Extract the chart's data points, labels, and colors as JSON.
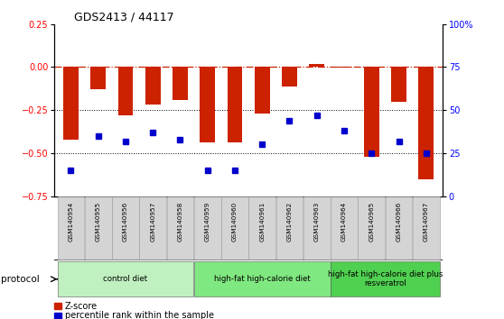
{
  "title": "GDS2413 / 44117",
  "samples": [
    "GSM140954",
    "GSM140955",
    "GSM140956",
    "GSM140957",
    "GSM140958",
    "GSM140959",
    "GSM140960",
    "GSM140961",
    "GSM140962",
    "GSM140963",
    "GSM140964",
    "GSM140965",
    "GSM140966",
    "GSM140967"
  ],
  "zscore": [
    -0.42,
    -0.13,
    -0.28,
    -0.22,
    -0.19,
    -0.44,
    -0.44,
    -0.27,
    -0.115,
    0.02,
    -0.005,
    -0.52,
    -0.2,
    -0.65
  ],
  "percentile": [
    15,
    35,
    32,
    37,
    33,
    15,
    15,
    30,
    44,
    47,
    38,
    25,
    32,
    25
  ],
  "groups": [
    {
      "label": "control diet",
      "start": 0,
      "end": 5,
      "color": "#c0f0c0"
    },
    {
      "label": "high-fat high-calorie diet",
      "start": 5,
      "end": 10,
      "color": "#80e880"
    },
    {
      "label": "high-fat high-calorie diet plus\nresveratrol",
      "start": 10,
      "end": 14,
      "color": "#50d050"
    }
  ],
  "bar_color": "#cc2200",
  "dot_color": "#0000cc",
  "zero_line_color": "#cc2200",
  "dotted_line_color": "#000000",
  "ylim_left": [
    -0.75,
    0.25
  ],
  "ylim_right": [
    0,
    100
  ],
  "yticks_left": [
    0.25,
    0.0,
    -0.25,
    -0.5,
    -0.75
  ],
  "yticks_right": [
    100,
    75,
    50,
    25,
    0
  ],
  "bar_width": 0.55,
  "legend_zscore": "Z-score",
  "legend_prank": "percentile rank within the sample"
}
